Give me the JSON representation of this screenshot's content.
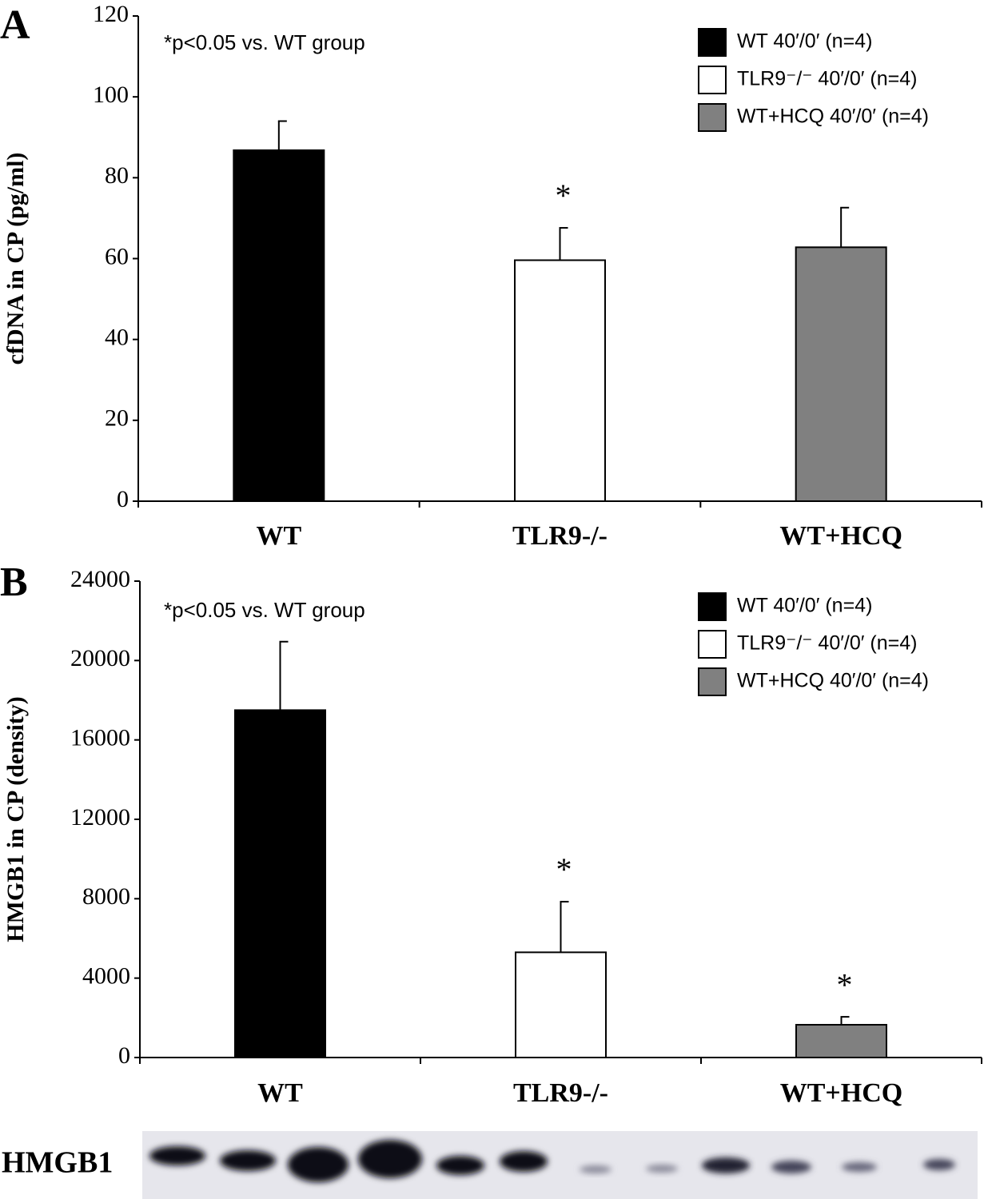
{
  "chart_data": [
    {
      "type": "bar",
      "panel": "A",
      "ylabel": "cfDNA in CP (pg/ml)",
      "annotation": "*p<0.05 vs. WT group",
      "categories": [
        "WT",
        "TLR9-/-",
        "WT+HCQ"
      ],
      "values": [
        86.8,
        59.6,
        62.8
      ],
      "errors": [
        7.2,
        8.0,
        9.8
      ],
      "significance": [
        null,
        "*",
        null
      ],
      "colors": [
        "#000000",
        "#ffffff",
        "#808080"
      ],
      "legend": [
        "WT 40′/0′ (n=4)",
        "TLR9⁻/⁻ 40′/0′ (n=4)",
        "WT+HCQ 40′/0′ (n=4)"
      ],
      "ylim": [
        0,
        120
      ],
      "yticks": [
        0,
        20,
        40,
        60,
        80,
        100,
        120
      ]
    },
    {
      "type": "bar",
      "panel": "B",
      "ylabel": "HMGB1 in CP (density)",
      "annotation": "*p<0.05 vs. WT group",
      "categories": [
        "WT",
        "TLR9-/-",
        "WT+HCQ"
      ],
      "values": [
        17500,
        5300,
        1650
      ],
      "errors": [
        3450,
        2550,
        400
      ],
      "significance": [
        null,
        "*",
        "*"
      ],
      "colors": [
        "#000000",
        "#ffffff",
        "#808080"
      ],
      "legend": [
        "WT 40′/0′ (n=4)",
        "TLR9⁻/⁻ 40′/0′ (n=4)",
        "WT+HCQ 40′/0′ (n=4)"
      ],
      "ylim": [
        0,
        24000
      ],
      "yticks": [
        0,
        4000,
        8000,
        12000,
        16000,
        20000,
        24000
      ]
    }
  ],
  "blot": {
    "label": "HMGB1"
  }
}
